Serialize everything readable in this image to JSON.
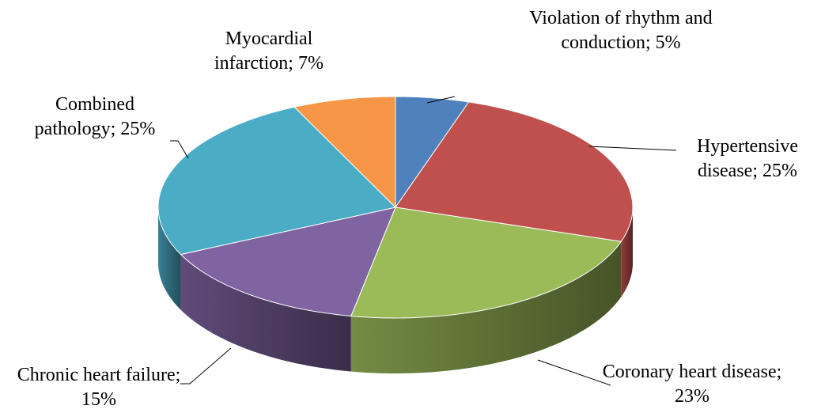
{
  "chart_data": {
    "type": "pie3d",
    "labels": [
      "Violation of rhythm and conduction; 5%",
      "Hypertensive disease; 25%",
      "Coronary heart disease; 23%",
      "Chronic heart failure; 15%",
      "Combined pathology; 25%",
      "Myocardial infarction; 7%"
    ],
    "values": [
      5,
      25,
      23,
      15,
      25,
      7
    ],
    "colors": [
      "#4f81bd",
      "#c0504d",
      "#9bbb59",
      "#8064a2",
      "#4bacc6",
      "#f79646"
    ]
  }
}
